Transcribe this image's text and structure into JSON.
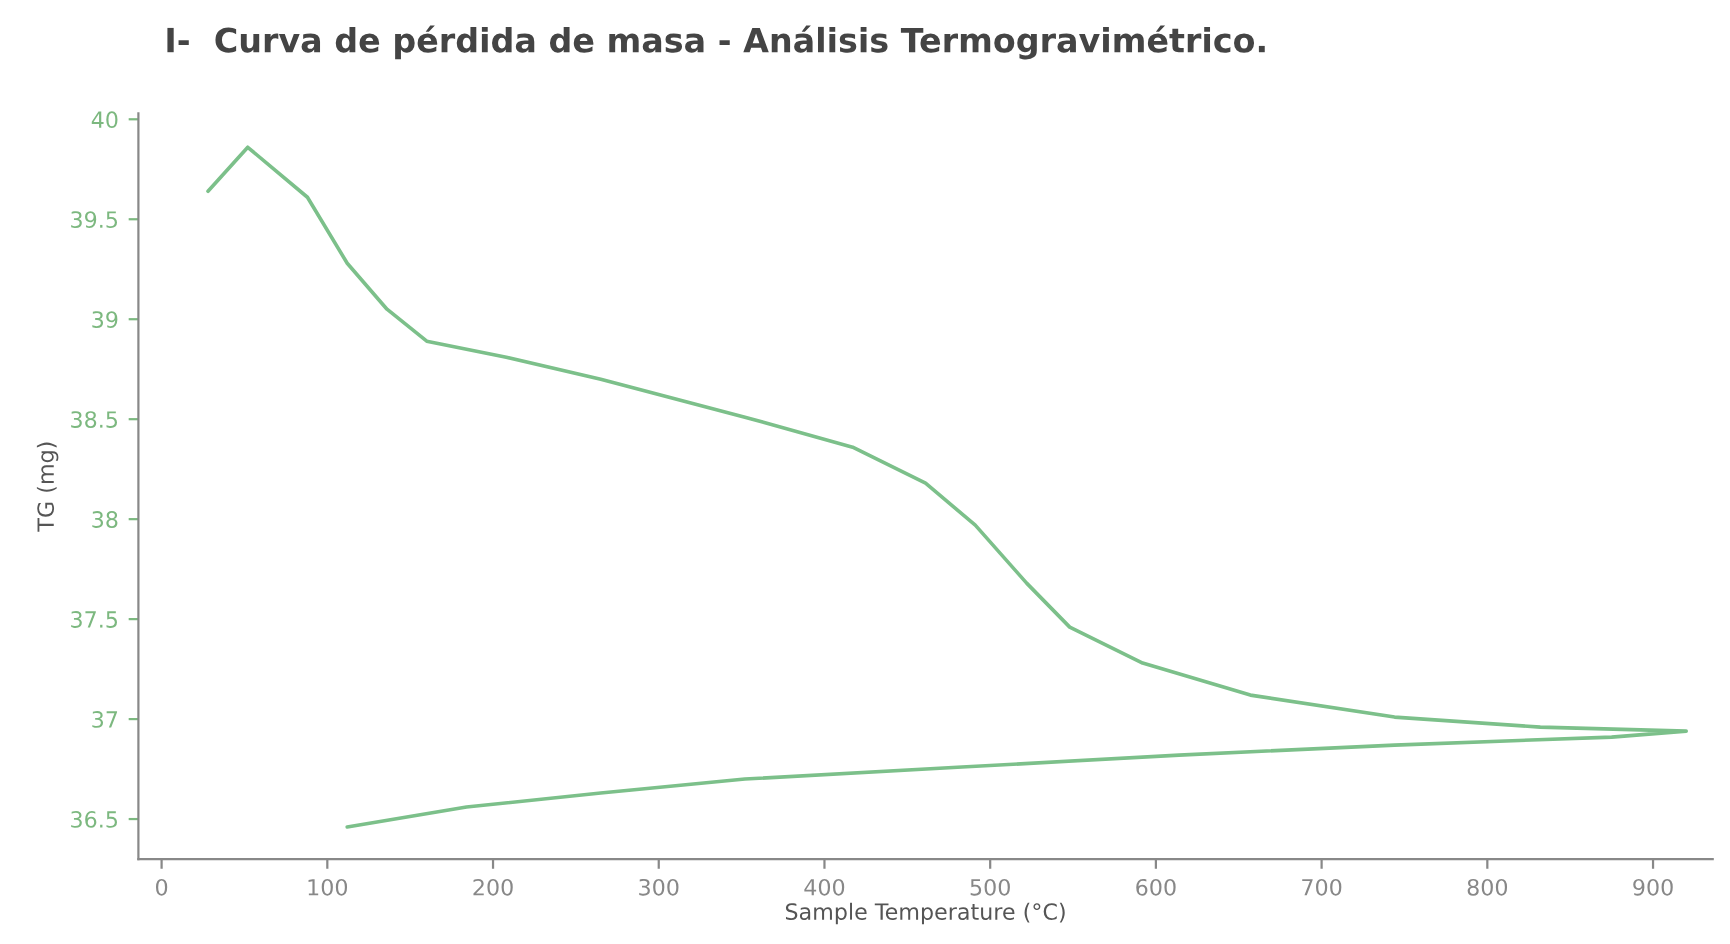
{
  "chart_data": {
    "type": "line",
    "title": "I-  Curva de pérdida de masa - Análisis Termogravimétrico.",
    "xlabel": "Sample Temperature (°C)",
    "ylabel": "TG (mg)",
    "series": [
      {
        "color": "#7cc08a",
        "x": [
          28,
          52,
          88,
          112,
          136,
          160,
          208,
          265,
          352,
          417,
          461,
          491,
          522,
          548,
          592,
          657,
          744,
          832,
          920,
          875,
          744,
          614,
          483,
          352,
          265,
          184,
          112
        ],
        "values": [
          39.64,
          39.86,
          39.61,
          39.28,
          39.05,
          38.89,
          38.81,
          38.7,
          38.51,
          38.36,
          38.18,
          37.97,
          37.68,
          37.46,
          37.28,
          37.12,
          37.01,
          36.96,
          36.94,
          36.91,
          36.87,
          36.82,
          36.76,
          36.7,
          36.63,
          36.56,
          36.46
        ]
      }
    ],
    "xlim": [
      -14,
      936
    ],
    "ylim": [
      36.3,
      40.03
    ],
    "xticks": [
      0,
      100,
      200,
      300,
      400,
      500,
      600,
      700,
      800,
      900
    ],
    "yticks": [
      36.5,
      37,
      37.5,
      38,
      38.5,
      39,
      39.5,
      40
    ],
    "grid": false,
    "marker": "none",
    "line_style": "solid"
  }
}
